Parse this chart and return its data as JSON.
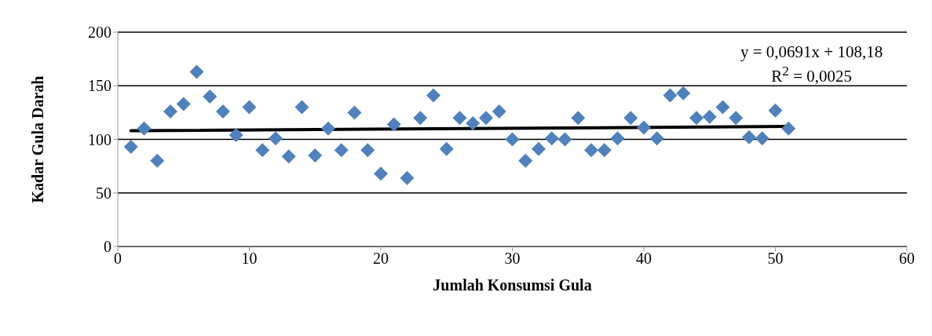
{
  "chart_data": {
    "type": "scatter",
    "xlabel": "Jumlah Konsumsi Gula",
    "ylabel": "Kadar Gula Darah",
    "xlim": [
      0,
      60
    ],
    "xticks": [
      0,
      10,
      20,
      30,
      40,
      50,
      60
    ],
    "ylim": [
      0,
      200
    ],
    "yticks": [
      0,
      50,
      100,
      150,
      200
    ],
    "grid": "y",
    "marker": "diamond",
    "series": [
      {
        "color": "#4f81bd",
        "x": [
          1,
          2,
          3,
          4,
          5,
          6,
          7,
          8,
          9,
          10,
          11,
          12,
          13,
          14,
          15,
          16,
          17,
          18,
          19,
          20,
          21,
          22,
          23,
          24,
          25,
          26,
          27,
          28,
          29,
          30,
          31,
          32,
          33,
          34,
          35,
          36,
          37,
          38,
          39,
          40,
          41,
          42,
          43,
          44,
          45,
          46,
          47,
          48,
          49,
          50,
          51
        ],
        "values": [
          93,
          110,
          80,
          126,
          133,
          163,
          140,
          126,
          104,
          130,
          90,
          101,
          84,
          130,
          85,
          110,
          90,
          125,
          90,
          68,
          114,
          64,
          120,
          141,
          91,
          120,
          115,
          120,
          126,
          100,
          80,
          91,
          101,
          100,
          120,
          90,
          90,
          101,
          120,
          111,
          101,
          141,
          143,
          120,
          121,
          130,
          120,
          102,
          101,
          127,
          110
        ]
      },
      {
        "type": "line",
        "color": "#000000",
        "x": [
          1,
          51
        ],
        "values": [
          108,
          112
        ],
        "marker": "none",
        "line_style": "solid"
      }
    ],
    "annotations": [
      "y = 0,0691x + 108,18",
      "R$^{2}$ = 0,0025"
    ]
  }
}
